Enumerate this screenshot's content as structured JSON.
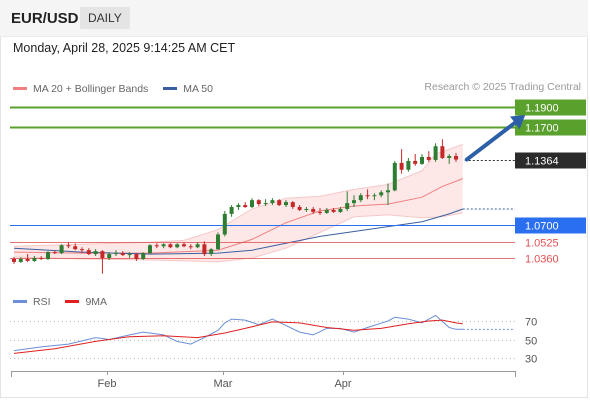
{
  "header": {
    "symbol": "EUR/USD",
    "timeframe": "DAILY"
  },
  "timestamp": "Monday, April 28, 2025 9:14:25 AM CET",
  "legend": {
    "items": [
      {
        "label": "MA 20 + Bollinger Bands",
        "color": "#f08080"
      },
      {
        "label": "MA 50",
        "color": "#3a5f9f"
      }
    ],
    "copyright": "Research © 2025 Trading Central"
  },
  "rsi_legend": {
    "items": [
      {
        "label": "RSI",
        "color": "#6b8fd6"
      },
      {
        "label": "9MA",
        "color": "#e02020"
      }
    ]
  },
  "colors": {
    "up": "#2e7d32",
    "down": "#c62828",
    "bb_fill": "#fde4e4",
    "ma20": "#f08080",
    "ma50": "#3a5f9f",
    "target": "#5aa02c",
    "support": "#2a6ff0",
    "resistance_red": "#e05050",
    "arrow": "#2c5fa8"
  },
  "chart_data": [
    {
      "type": "candlestick",
      "x_axis": {
        "tick_labels": [
          "Feb",
          "Mar",
          "Apr"
        ]
      },
      "y_range": [
        1.015,
        1.2
      ],
      "levels": [
        {
          "label": "1.1900",
          "value": 1.19,
          "style": "target"
        },
        {
          "label": "1.1700",
          "value": 1.17,
          "style": "target"
        },
        {
          "label": "1.1364",
          "value": 1.1364,
          "style": "last"
        },
        {
          "label": "1.0700",
          "value": 1.07,
          "style": "pivot"
        },
        {
          "label": "1.0525",
          "value": 1.0525,
          "style": "support"
        },
        {
          "label": "1.0360",
          "value": 1.036,
          "style": "support"
        }
      ],
      "candles": [
        [
          1.035,
          1.037,
          1.03,
          1.032
        ],
        [
          1.032,
          1.037,
          1.031,
          1.035
        ],
        [
          1.035,
          1.04,
          1.032,
          1.033
        ],
        [
          1.033,
          1.038,
          1.032,
          1.036
        ],
        [
          1.036,
          1.038,
          1.034,
          1.035
        ],
        [
          1.035,
          1.043,
          1.034,
          1.042
        ],
        [
          1.042,
          1.044,
          1.04,
          1.041
        ],
        [
          1.041,
          1.05,
          1.04,
          1.049
        ],
        [
          1.049,
          1.052,
          1.046,
          1.048
        ],
        [
          1.048,
          1.051,
          1.044,
          1.045
        ],
        [
          1.045,
          1.047,
          1.041,
          1.044
        ],
        [
          1.044,
          1.046,
          1.039,
          1.04
        ],
        [
          1.04,
          1.045,
          1.038,
          1.043
        ],
        [
          1.043,
          1.044,
          1.02,
          1.036
        ],
        [
          1.036,
          1.042,
          1.034,
          1.04
        ],
        [
          1.04,
          1.044,
          1.038,
          1.041
        ],
        [
          1.041,
          1.043,
          1.038,
          1.039
        ],
        [
          1.039,
          1.042,
          1.036,
          1.04
        ],
        [
          1.04,
          1.041,
          1.033,
          1.035
        ],
        [
          1.035,
          1.042,
          1.034,
          1.041
        ],
        [
          1.041,
          1.05,
          1.04,
          1.049
        ],
        [
          1.049,
          1.051,
          1.046,
          1.048
        ],
        [
          1.048,
          1.051,
          1.046,
          1.05
        ],
        [
          1.05,
          1.051,
          1.046,
          1.047
        ],
        [
          1.047,
          1.051,
          1.046,
          1.05
        ],
        [
          1.05,
          1.052,
          1.047,
          1.048
        ],
        [
          1.048,
          1.05,
          1.045,
          1.047
        ],
        [
          1.047,
          1.052,
          1.046,
          1.05
        ],
        [
          1.05,
          1.053,
          1.038,
          1.04
        ],
        [
          1.04,
          1.046,
          1.038,
          1.045
        ],
        [
          1.045,
          1.062,
          1.044,
          1.06
        ],
        [
          1.06,
          1.084,
          1.058,
          1.081
        ],
        [
          1.081,
          1.09,
          1.078,
          1.088
        ],
        [
          1.088,
          1.092,
          1.085,
          1.09
        ],
        [
          1.09,
          1.093,
          1.087,
          1.088
        ],
        [
          1.088,
          1.097,
          1.087,
          1.095
        ],
        [
          1.095,
          1.096,
          1.089,
          1.091
        ],
        [
          1.091,
          1.096,
          1.089,
          1.092
        ],
        [
          1.092,
          1.097,
          1.09,
          1.095
        ],
        [
          1.095,
          1.096,
          1.089,
          1.09
        ],
        [
          1.09,
          1.095,
          1.088,
          1.093
        ],
        [
          1.093,
          1.094,
          1.086,
          1.088
        ],
        [
          1.088,
          1.09,
          1.084,
          1.085
        ],
        [
          1.085,
          1.088,
          1.083,
          1.086
        ],
        [
          1.086,
          1.088,
          1.081,
          1.083
        ],
        [
          1.083,
          1.087,
          1.08,
          1.082
        ],
        [
          1.082,
          1.087,
          1.081,
          1.085
        ],
        [
          1.085,
          1.087,
          1.082,
          1.083
        ],
        [
          1.083,
          1.088,
          1.082,
          1.086
        ],
        [
          1.086,
          1.104,
          1.084,
          1.092
        ],
        [
          1.092,
          1.1,
          1.088,
          1.095
        ],
        [
          1.095,
          1.102,
          1.093,
          1.1
        ],
        [
          1.1,
          1.106,
          1.096,
          1.099
        ],
        [
          1.099,
          1.102,
          1.095,
          1.1
        ],
        [
          1.1,
          1.105,
          1.098,
          1.103
        ],
        [
          1.103,
          1.112,
          1.09,
          1.105
        ],
        [
          1.105,
          1.135,
          1.104,
          1.133
        ],
        [
          1.133,
          1.147,
          1.122,
          1.126
        ],
        [
          1.126,
          1.138,
          1.124,
          1.135
        ],
        [
          1.135,
          1.142,
          1.13,
          1.132
        ],
        [
          1.132,
          1.142,
          1.131,
          1.139
        ],
        [
          1.139,
          1.145,
          1.134,
          1.136
        ],
        [
          1.136,
          1.153,
          1.134,
          1.15
        ],
        [
          1.15,
          1.157,
          1.137,
          1.138
        ],
        [
          1.138,
          1.142,
          1.132,
          1.14
        ],
        [
          1.14,
          1.143,
          1.134,
          1.1364
        ]
      ],
      "ma20": [
        [
          0,
          1.042
        ],
        [
          10,
          1.041
        ],
        [
          20,
          1.041
        ],
        [
          30,
          1.044
        ],
        [
          35,
          1.055
        ],
        [
          40,
          1.072
        ],
        [
          45,
          1.084
        ],
        [
          50,
          1.089
        ],
        [
          55,
          1.091
        ],
        [
          60,
          1.098
        ],
        [
          63,
          1.109
        ],
        [
          66,
          1.117
        ]
      ],
      "bollinger_upper": [
        [
          0,
          1.048
        ],
        [
          10,
          1.05
        ],
        [
          20,
          1.052
        ],
        [
          25,
          1.054
        ],
        [
          30,
          1.065
        ],
        [
          35,
          1.086
        ],
        [
          40,
          1.097
        ],
        [
          45,
          1.099
        ],
        [
          50,
          1.106
        ],
        [
          55,
          1.111
        ],
        [
          60,
          1.125
        ],
        [
          62,
          1.142
        ],
        [
          66,
          1.152
        ]
      ],
      "bollinger_lower": [
        [
          0,
          1.037
        ],
        [
          10,
          1.035
        ],
        [
          20,
          1.034
        ],
        [
          25,
          1.033
        ],
        [
          30,
          1.032
        ],
        [
          35,
          1.036
        ],
        [
          40,
          1.046
        ],
        [
          45,
          1.062
        ],
        [
          50,
          1.078
        ],
        [
          55,
          1.08
        ],
        [
          60,
          1.077
        ],
        [
          63,
          1.078
        ],
        [
          66,
          1.082
        ]
      ],
      "ma50": [
        [
          0,
          1.046
        ],
        [
          10,
          1.042
        ],
        [
          20,
          1.04
        ],
        [
          30,
          1.041
        ],
        [
          35,
          1.044
        ],
        [
          40,
          1.051
        ],
        [
          45,
          1.058
        ],
        [
          50,
          1.063
        ],
        [
          55,
          1.068
        ],
        [
          60,
          1.073
        ],
        [
          64,
          1.081
        ],
        [
          66,
          1.086
        ]
      ],
      "forecast_arrow": {
        "from": [
          66,
          1.1364
        ],
        "to": [
          74,
          1.19
        ]
      }
    },
    {
      "type": "line",
      "title": "RSI",
      "y_ticks": [
        70,
        50,
        30
      ],
      "y_range": [
        20,
        80
      ],
      "series": [
        {
          "name": "RSI",
          "values": [
            [
              0,
              38
            ],
            [
              4,
              42
            ],
            [
              8,
              45
            ],
            [
              12,
              52
            ],
            [
              14,
              50
            ],
            [
              17,
              55
            ],
            [
              19,
              58
            ],
            [
              22,
              55
            ],
            [
              24,
              48
            ],
            [
              26,
              45
            ],
            [
              28,
              52
            ],
            [
              30,
              60
            ],
            [
              31,
              68
            ],
            [
              32,
              72
            ],
            [
              34,
              71
            ],
            [
              36,
              66
            ],
            [
              38,
              72
            ],
            [
              40,
              65
            ],
            [
              42,
              58
            ],
            [
              44,
              55
            ],
            [
              46,
              62
            ],
            [
              48,
              62
            ],
            [
              50,
              58
            ],
            [
              52,
              63
            ],
            [
              55,
              70
            ],
            [
              56,
              74
            ],
            [
              58,
              72
            ],
            [
              60,
              68
            ],
            [
              62,
              76
            ],
            [
              64,
              63
            ],
            [
              65,
              61
            ],
            [
              66,
              61
            ]
          ]
        },
        {
          "name": "9MA",
          "values": [
            [
              0,
              35
            ],
            [
              6,
              40
            ],
            [
              12,
              48
            ],
            [
              17,
              53
            ],
            [
              22,
              54
            ],
            [
              27,
              52
            ],
            [
              31,
              57
            ],
            [
              34,
              62
            ],
            [
              38,
              69
            ],
            [
              42,
              68
            ],
            [
              46,
              63
            ],
            [
              50,
              60
            ],
            [
              54,
              62
            ],
            [
              58,
              67
            ],
            [
              61,
              70
            ],
            [
              63,
              71
            ],
            [
              65,
              68
            ],
            [
              66,
              67
            ]
          ]
        }
      ]
    }
  ]
}
